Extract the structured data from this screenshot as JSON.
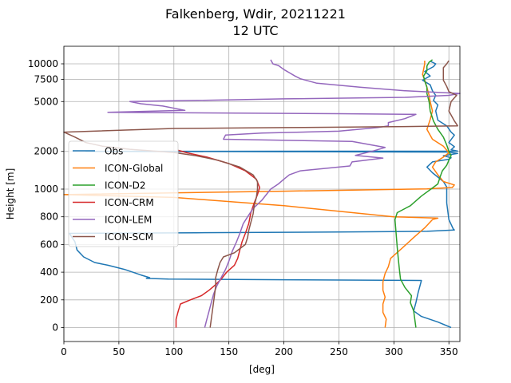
{
  "title_line1": "Falkenberg, Wdir, 20211221",
  "title_line2": "12 UTC",
  "chart_data": {
    "type": "line",
    "xlabel": "[deg]",
    "ylabel": "Height [m]",
    "xlim": [
      0,
      360
    ],
    "x_ticks": [
      0,
      50,
      100,
      150,
      200,
      250,
      300,
      350
    ],
    "y_scale": "piecewise: linear 0-1000, log 1000-12000",
    "y_ticks": [
      0,
      200,
      400,
      600,
      800,
      1000,
      2000,
      5000,
      7500,
      10000
    ],
    "y_tick_labels": [
      "0",
      "200",
      "400",
      "600",
      "800",
      "1000",
      "2000",
      "5000",
      "7500",
      "10000"
    ],
    "grid": true,
    "legend_position": "center-left",
    "series": [
      {
        "name": "Obs",
        "color": "#1f77b4",
        "points": [
          [
            352,
            0
          ],
          [
            340,
            40
          ],
          [
            325,
            80
          ],
          [
            318,
            120
          ],
          [
            320,
            180
          ],
          [
            322,
            250
          ],
          [
            325,
            340
          ],
          [
            200,
            345
          ],
          [
            95,
            350
          ],
          [
            75,
            355
          ],
          [
            78,
            360
          ],
          [
            70,
            380
          ],
          [
            55,
            420
          ],
          [
            40,
            450
          ],
          [
            28,
            470
          ],
          [
            18,
            510
          ],
          [
            12,
            560
          ],
          [
            10,
            620
          ],
          [
            5,
            680
          ],
          [
            120,
            685
          ],
          [
            250,
            690
          ],
          [
            330,
            695
          ],
          [
            355,
            705
          ],
          [
            354,
            712
          ],
          [
            350,
            780
          ],
          [
            348,
            900
          ],
          [
            348,
            1040
          ],
          [
            345,
            1150
          ],
          [
            335,
            1350
          ],
          [
            330,
            1500
          ],
          [
            335,
            1650
          ],
          [
            350,
            1730
          ],
          [
            352,
            1780
          ],
          [
            345,
            1850
          ],
          [
            358,
            1930
          ],
          [
            350,
            1975
          ],
          [
            200,
            1990
          ],
          [
            20,
            2000
          ],
          [
            358,
            2010
          ],
          [
            352,
            2060
          ],
          [
            355,
            2180
          ],
          [
            350,
            2350
          ],
          [
            355,
            2700
          ],
          [
            352,
            2850
          ],
          [
            348,
            3200
          ],
          [
            340,
            3550
          ],
          [
            338,
            4200
          ],
          [
            340,
            4700
          ],
          [
            336,
            5100
          ],
          [
            338,
            5600
          ],
          [
            335,
            6100
          ],
          [
            333,
            6800
          ],
          [
            326,
            7400
          ],
          [
            333,
            8000
          ],
          [
            328,
            8700
          ],
          [
            336,
            9500
          ],
          [
            338,
            10000
          ],
          [
            333,
            10500
          ]
        ]
      },
      {
        "name": "ICON-Global",
        "color": "#ff7f0e",
        "points": [
          [
            292,
            0
          ],
          [
            293,
            60
          ],
          [
            290,
            110
          ],
          [
            290,
            170
          ],
          [
            292,
            220
          ],
          [
            290,
            270
          ],
          [
            290,
            330
          ],
          [
            292,
            390
          ],
          [
            295,
            440
          ],
          [
            297,
            500
          ],
          [
            307,
            570
          ],
          [
            318,
            650
          ],
          [
            328,
            720
          ],
          [
            335,
            780
          ],
          [
            340,
            790
          ],
          [
            300,
            800
          ],
          [
            200,
            880
          ],
          [
            100,
            940
          ],
          [
            0,
            960
          ],
          [
            200,
            985
          ],
          [
            330,
            1005
          ],
          [
            353,
            1030
          ],
          [
            355,
            1080
          ],
          [
            345,
            1150
          ],
          [
            340,
            1300
          ],
          [
            335,
            1500
          ],
          [
            338,
            1650
          ],
          [
            345,
            1800
          ],
          [
            350,
            1950
          ],
          [
            345,
            2200
          ],
          [
            335,
            2500
          ],
          [
            330,
            3000
          ],
          [
            333,
            3600
          ],
          [
            335,
            4200
          ],
          [
            333,
            5000
          ],
          [
            332,
            5600
          ],
          [
            330,
            6500
          ],
          [
            328,
            7400
          ],
          [
            326,
            8200
          ],
          [
            327,
            9000
          ],
          [
            328,
            10000
          ],
          [
            328,
            10600
          ]
        ]
      },
      {
        "name": "ICON-D2",
        "color": "#2ca02c",
        "points": [
          [
            320,
            0
          ],
          [
            319,
            60
          ],
          [
            318,
            120
          ],
          [
            315,
            180
          ],
          [
            316,
            230
          ],
          [
            310,
            290
          ],
          [
            306,
            350
          ],
          [
            305,
            420
          ],
          [
            304,
            500
          ],
          [
            303,
            580
          ],
          [
            302,
            680
          ],
          [
            301,
            780
          ],
          [
            303,
            830
          ],
          [
            315,
            880
          ],
          [
            325,
            950
          ],
          [
            335,
            1020
          ],
          [
            340,
            1100
          ],
          [
            342,
            1250
          ],
          [
            344,
            1400
          ],
          [
            348,
            1550
          ],
          [
            350,
            1700
          ],
          [
            352,
            1850
          ],
          [
            350,
            2000
          ],
          [
            348,
            2250
          ],
          [
            345,
            2600
          ],
          [
            340,
            3000
          ],
          [
            336,
            3500
          ],
          [
            333,
            4200
          ],
          [
            332,
            5000
          ],
          [
            330,
            5800
          ],
          [
            330,
            6500
          ],
          [
            328,
            7300
          ],
          [
            327,
            8000
          ],
          [
            330,
            8800
          ],
          [
            330,
            9600
          ],
          [
            332,
            10300
          ],
          [
            335,
            10800
          ]
        ]
      },
      {
        "name": "ICON-CRM",
        "color": "#d62728",
        "points": [
          [
            102,
            0
          ],
          [
            102,
            60
          ],
          [
            104,
            120
          ],
          [
            106,
            170
          ],
          [
            115,
            200
          ],
          [
            125,
            230
          ],
          [
            132,
            270
          ],
          [
            138,
            310
          ],
          [
            143,
            350
          ],
          [
            148,
            400
          ],
          [
            155,
            450
          ],
          [
            158,
            500
          ],
          [
            160,
            560
          ],
          [
            162,
            620
          ],
          [
            165,
            680
          ],
          [
            168,
            750
          ],
          [
            170,
            830
          ],
          [
            173,
            900
          ],
          [
            176,
            960
          ],
          [
            178,
            1030
          ],
          [
            175,
            1200
          ],
          [
            165,
            1400
          ],
          [
            150,
            1600
          ],
          [
            130,
            1800
          ],
          [
            112,
            1950
          ],
          [
            104,
            2040
          ]
        ]
      },
      {
        "name": "ICON-LEM",
        "color": "#9467bd",
        "points": [
          [
            128,
            0
          ],
          [
            130,
            60
          ],
          [
            132,
            120
          ],
          [
            134,
            180
          ],
          [
            136,
            240
          ],
          [
            139,
            300
          ],
          [
            143,
            360
          ],
          [
            147,
            420
          ],
          [
            150,
            480
          ],
          [
            153,
            550
          ],
          [
            157,
            620
          ],
          [
            160,
            680
          ],
          [
            163,
            750
          ],
          [
            167,
            800
          ],
          [
            172,
            860
          ],
          [
            180,
            920
          ],
          [
            188,
            1000
          ],
          [
            195,
            1100
          ],
          [
            200,
            1200
          ],
          [
            205,
            1300
          ],
          [
            215,
            1400
          ],
          [
            260,
            1530
          ],
          [
            262,
            1650
          ],
          [
            290,
            1770
          ],
          [
            265,
            1860
          ],
          [
            280,
            2000
          ],
          [
            292,
            2150
          ],
          [
            262,
            2400
          ],
          [
            145,
            2500
          ],
          [
            147,
            2700
          ],
          [
            180,
            2800
          ],
          [
            250,
            2900
          ],
          [
            285,
            3100
          ],
          [
            295,
            3200
          ],
          [
            295,
            3400
          ],
          [
            310,
            3650
          ],
          [
            320,
            3950
          ],
          [
            250,
            4000
          ],
          [
            40,
            4100
          ],
          [
            110,
            4250
          ],
          [
            90,
            4600
          ],
          [
            70,
            4800
          ],
          [
            60,
            5000
          ],
          [
            200,
            5250
          ],
          [
            310,
            5400
          ],
          [
            350,
            5600
          ],
          [
            360,
            5800
          ],
          [
            310,
            6100
          ],
          [
            270,
            6500
          ],
          [
            230,
            7000
          ],
          [
            215,
            7600
          ],
          [
            210,
            8000
          ],
          [
            205,
            8500
          ],
          [
            200,
            9000
          ],
          [
            195,
            9700
          ],
          [
            190,
            10000
          ],
          [
            188,
            10800
          ]
        ]
      },
      {
        "name": "ICON-SCM",
        "color": "#8c564b",
        "points": [
          [
            133,
            0
          ],
          [
            134,
            60
          ],
          [
            135,
            120
          ],
          [
            136,
            180
          ],
          [
            137,
            240
          ],
          [
            138,
            300
          ],
          [
            138,
            360
          ],
          [
            140,
            420
          ],
          [
            142,
            470
          ],
          [
            145,
            510
          ],
          [
            155,
            540
          ],
          [
            160,
            570
          ],
          [
            165,
            600
          ],
          [
            167,
            650
          ],
          [
            168,
            700
          ],
          [
            170,
            760
          ],
          [
            172,
            820
          ],
          [
            173,
            880
          ],
          [
            175,
            940
          ],
          [
            176,
            1000
          ],
          [
            176,
            1150
          ],
          [
            172,
            1300
          ],
          [
            160,
            1500
          ],
          [
            140,
            1700
          ],
          [
            120,
            1850
          ],
          [
            100,
            1960
          ],
          [
            60,
            2080
          ],
          [
            35,
            2200
          ],
          [
            20,
            2350
          ],
          [
            10,
            2600
          ],
          [
            0,
            2850
          ],
          [
            100,
            3050
          ],
          [
            200,
            3100
          ],
          [
            300,
            3150
          ],
          [
            358,
            3200
          ],
          [
            355,
            3500
          ],
          [
            350,
            4200
          ],
          [
            352,
            5000
          ],
          [
            357,
            5600
          ],
          [
            350,
            6000
          ],
          [
            348,
            6600
          ],
          [
            345,
            7400
          ],
          [
            345,
            8500
          ],
          [
            345,
            9300
          ],
          [
            348,
            10000
          ],
          [
            350,
            10600
          ]
        ]
      }
    ]
  }
}
